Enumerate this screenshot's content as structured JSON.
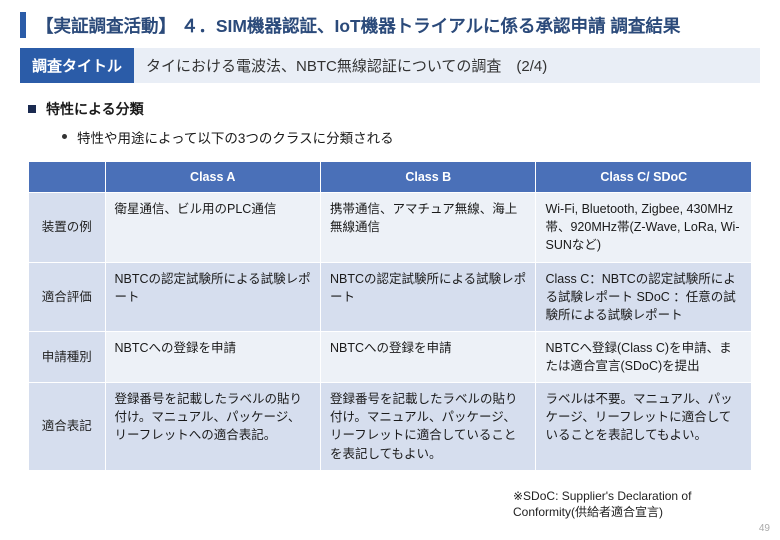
{
  "title": "【実証調査活動】 ４．SIM機器認証、IoT機器トライアルに係る承認申請 調査結果",
  "subtitle_label": "調査タイトル",
  "subtitle_text": "タイにおける電波法、NBTC無線認証についての調査　(2/4)",
  "bullet1": "特性による分類",
  "bullet2": "特性や用途によって以下の3つのクラスに分類される",
  "table": {
    "headers": [
      "",
      "Class A",
      "Class B",
      "Class C/ SDoC"
    ],
    "row_headers": [
      "装置の例",
      "適合評価",
      "申請種別",
      "適合表記"
    ],
    "cells": [
      [
        "衛星通信、ビル用のPLC通信",
        "携帯通信、アマチュア無線、海上無線通信",
        "Wi-Fi, Bluetooth, Zigbee, 430MHz帯、920MHz帯(Z-Wave, LoRa, Wi-SUNなど)"
      ],
      [
        "NBTCの認定試験所による試験レポート",
        "NBTCの認定試験所による試験レポート",
        "Class C：NBTCの認定試験所による試験レポート\nSDoC ：任意の試験所による試験レポート"
      ],
      [
        "NBTCへの登録を申請",
        "NBTCへの登録を申請",
        "NBTCへ登録(Class C)を申請、または適合宣言(SDoC)を提出"
      ],
      [
        "登録番号を記載したラベルの貼り付け。マニュアル、パッケージ、リーフレットへの適合表記。",
        "登録番号を記載したラベルの貼り付け。マニュアル、パッケージ、リーフレットに適合していることを表記してもよい。",
        "ラベルは不要。マニュアル、パッケージ、リーフレットに適合していることを表記してもよい。"
      ]
    ]
  },
  "footnote": "※SDoC: Supplier's Declaration of Conformity(供給者適合宣言)",
  "page_number": "49",
  "colors": {
    "accent": "#2b5ca8",
    "header_bg": "#4a70b8",
    "rowhdr_bg": "#d6deee",
    "odd_bg": "#edf1f7",
    "even_bg": "#d6deee"
  }
}
